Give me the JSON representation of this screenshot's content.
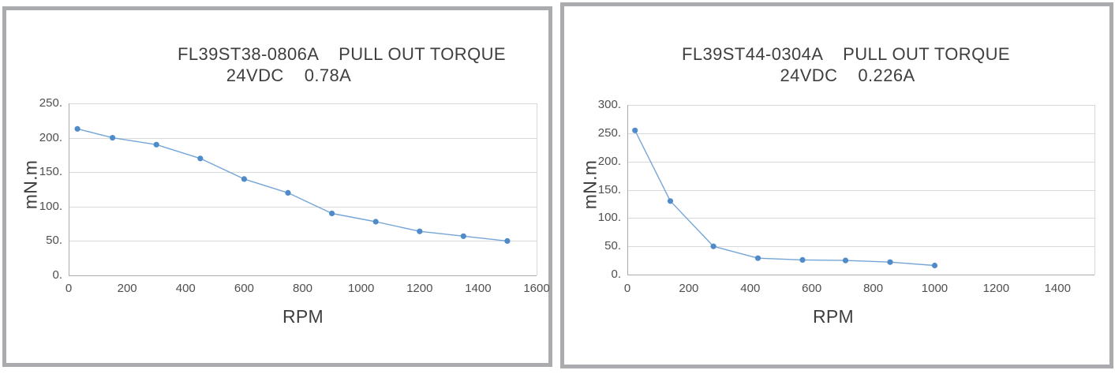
{
  "page": {
    "background_color": "#ffffff",
    "panel_border_color": "#a9abae"
  },
  "chart_data": [
    {
      "type": "line",
      "title": "FL39ST38-0806A    PULL OUT TORQUE  24VDC  0.78A",
      "title_line1": "FL39ST38-0806A    PULL OUT TORQUE",
      "title_line2": "24VDC    0.78A",
      "xlabel": "RPM",
      "ylabel": "mN.m",
      "x": [
        30,
        150,
        300,
        450,
        600,
        750,
        900,
        1050,
        1200,
        1350,
        1500
      ],
      "y": [
        213,
        200,
        190,
        170,
        140,
        120,
        90,
        78,
        64,
        57,
        50
      ],
      "xlim": [
        0,
        1600
      ],
      "ylim": [
        0,
        250
      ],
      "x_tick_labels": [
        "0",
        "200",
        "400",
        "600",
        "800",
        "1000",
        "1200",
        "1400",
        "1600"
      ],
      "y_tick_labels": [
        "0.",
        "50.",
        "100.",
        "150.",
        "200.",
        "250."
      ],
      "grid": "horizontal",
      "legend": "none",
      "marker": "circle",
      "line_color": "#74a5d8",
      "marker_color": "#4f8bc9",
      "gridline_color": "#d9d9d9",
      "axis_line_color": "#ababab"
    },
    {
      "type": "line",
      "title": "FL39ST44-0304A    PULL OUT TORQUE  24VDC  0.226A",
      "title_line1": "FL39ST44-0304A    PULL OUT TORQUE",
      "title_line2": "24VDC    0.226A",
      "xlabel": "RPM",
      "ylabel": "mN.m",
      "x": [
        25,
        140,
        280,
        425,
        570,
        710,
        855,
        1000
      ],
      "y": [
        255,
        130,
        50,
        29,
        26,
        25,
        22,
        16
      ],
      "xlim": [
        0,
        1520
      ],
      "ylim": [
        0,
        300
      ],
      "x_tick_labels": [
        "0",
        "200",
        "400",
        "600",
        "800",
        "1000",
        "1200",
        "1400"
      ],
      "y_tick_labels": [
        "0.",
        "50.",
        "100.",
        "150.",
        "200.",
        "250.",
        "300."
      ],
      "grid": "horizontal",
      "legend": "none",
      "marker": "circle",
      "line_color": "#74a5d8",
      "marker_color": "#4f8bc9",
      "gridline_color": "#d9d9d9",
      "axis_line_color": "#ababab"
    }
  ]
}
